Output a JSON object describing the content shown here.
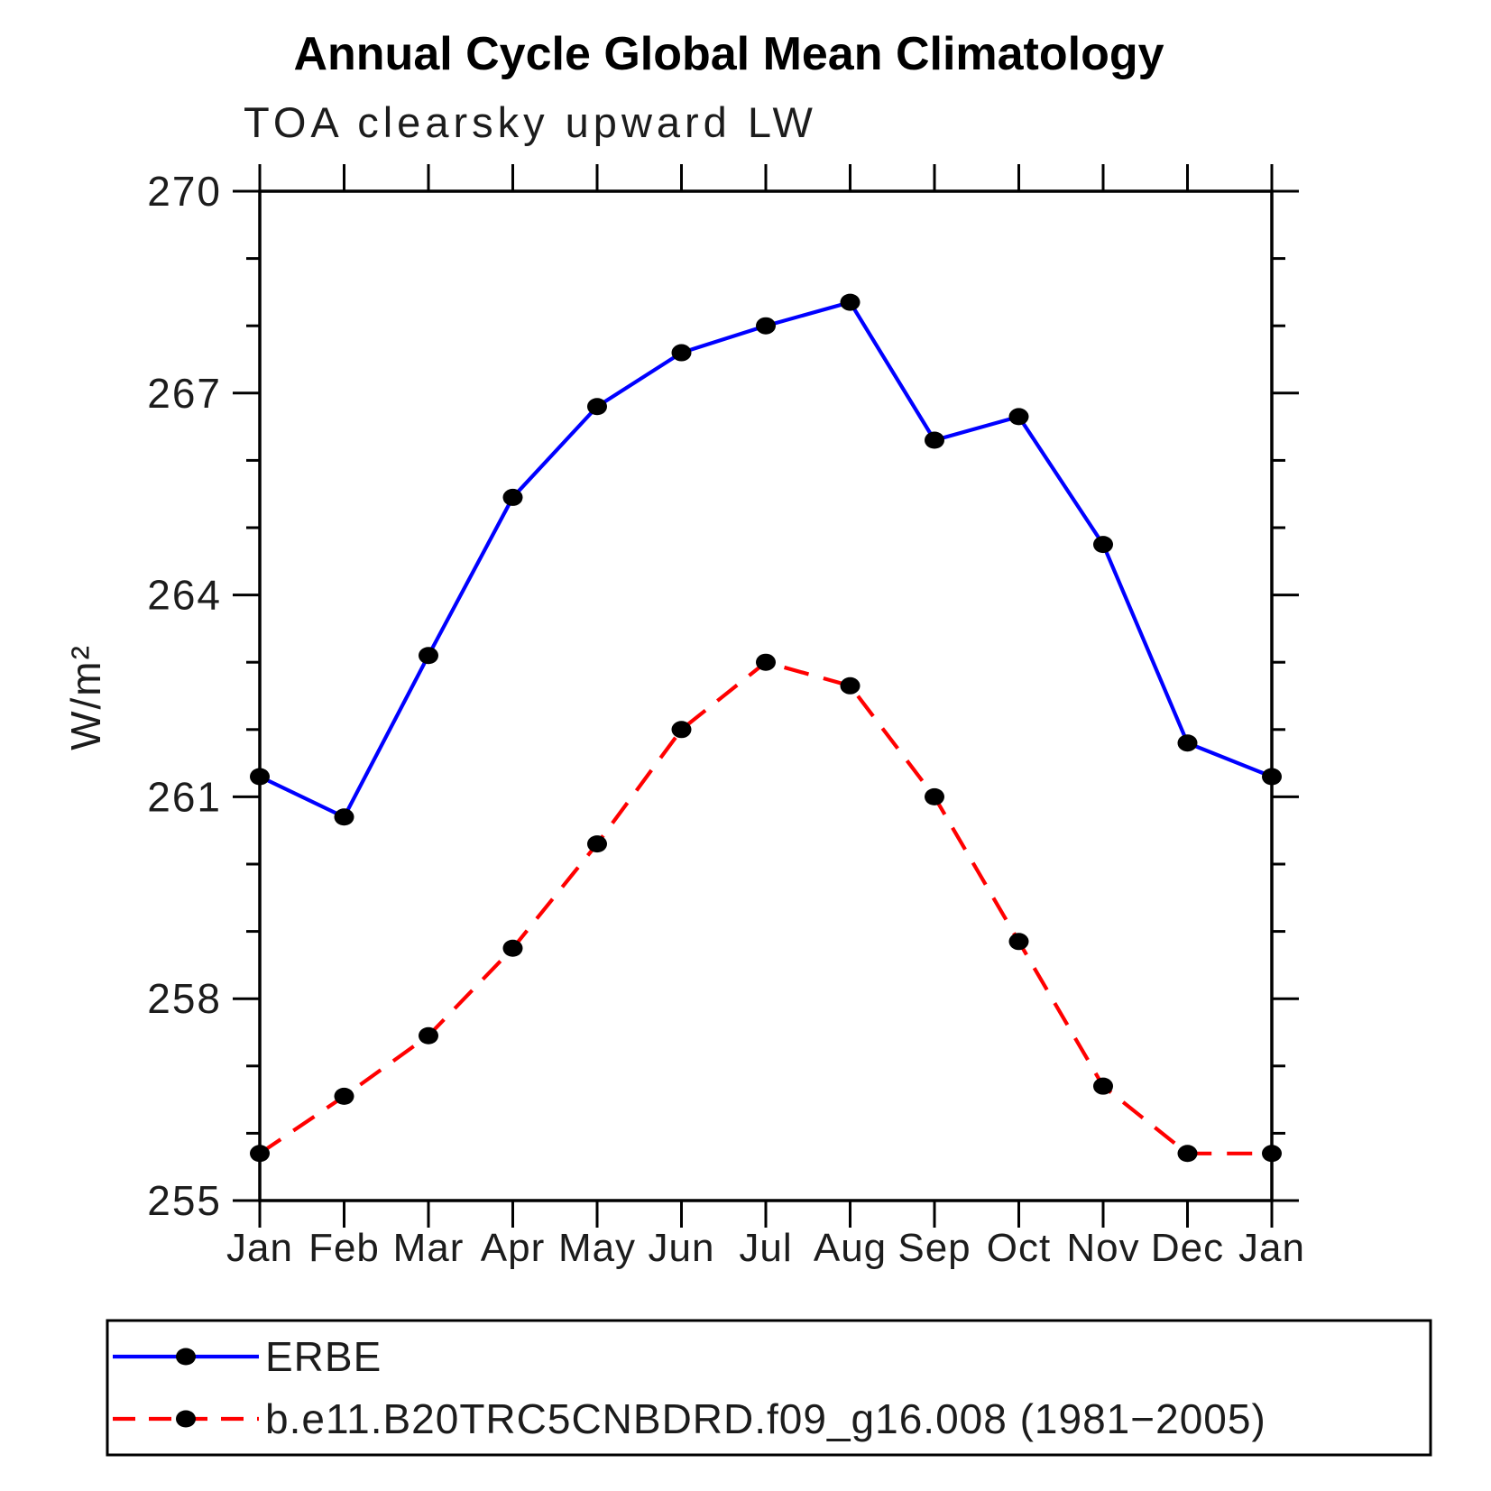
{
  "chart_data": {
    "type": "line",
    "title": "Annual Cycle Global Mean Climatology",
    "subtitle": "TOA clearsky upward LW",
    "ylabel": "W/m²",
    "x_categories": [
      "Jan",
      "Feb",
      "Mar",
      "Apr",
      "May",
      "Jun",
      "Jul",
      "Aug",
      "Sep",
      "Oct",
      "Nov",
      "Dec",
      "Jan"
    ],
    "ylim": [
      255,
      270
    ],
    "ytick_major_step": 3,
    "ytick_minor_step": 1,
    "ytick_labels": [
      "255",
      "258",
      "261",
      "264",
      "267",
      "270"
    ],
    "grid": "off",
    "legend_position": "bottom-outside-box",
    "series": [
      {
        "id": "erbe",
        "name": "ERBE",
        "color": "#0000ff",
        "line_style": "solid",
        "marker": "filled-circle",
        "marker_color": "#000000",
        "values": [
          261.3,
          260.7,
          263.1,
          265.45,
          266.8,
          267.6,
          268.0,
          268.35,
          266.3,
          266.65,
          264.75,
          261.8,
          261.3
        ]
      },
      {
        "id": "model",
        "name": "b.e11.B20TRC5CNBDRD.f09_g16.008 (1981−2005)",
        "color": "#ff0000",
        "line_style": "dashed",
        "marker": "filled-circle",
        "marker_color": "#000000",
        "values": [
          255.7,
          256.55,
          257.45,
          258.75,
          260.3,
          262.0,
          263.0,
          262.65,
          261.0,
          258.85,
          256.7,
          255.7,
          255.7
        ]
      }
    ],
    "axis_color": "#000000",
    "background_color": "#ffffff"
  }
}
